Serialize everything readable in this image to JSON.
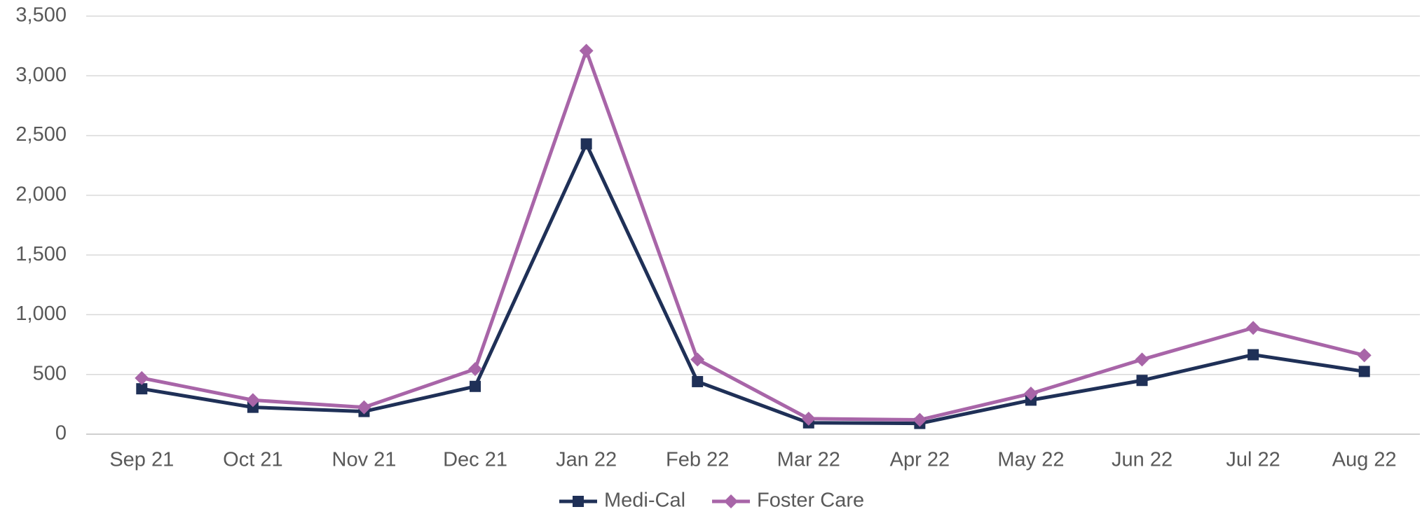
{
  "chart_data": {
    "type": "line",
    "categories": [
      "Sep 21",
      "Oct 21",
      "Nov 21",
      "Dec 21",
      "Jan 22",
      "Feb 22",
      "Mar 22",
      "Apr 22",
      "May 22",
      "Jun 22",
      "Jul 22",
      "Aug 22"
    ],
    "series": [
      {
        "name": "Medi-Cal",
        "color": "#1f3057",
        "marker": "square",
        "values": [
          380,
          225,
          190,
          400,
          2430,
          440,
          95,
          90,
          285,
          450,
          665,
          525
        ]
      },
      {
        "name": "Foster Care",
        "color": "#a865a8",
        "marker": "diamond",
        "values": [
          470,
          285,
          225,
          545,
          3210,
          625,
          130,
          120,
          340,
          625,
          890,
          660
        ]
      }
    ],
    "ylim": [
      0,
      3500
    ],
    "yticks": [
      0,
      500,
      {
        "value": 1000,
        "label": "1,000"
      },
      {
        "value": 1500,
        "label": "1,500"
      },
      {
        "value": 2000,
        "label": "2,000"
      },
      {
        "value": 2500,
        "label": "2,500"
      },
      {
        "value": 3000,
        "label": "3,000"
      },
      {
        "value": 3500,
        "label": "3,500"
      }
    ],
    "grid": true,
    "legend": "bottom"
  }
}
